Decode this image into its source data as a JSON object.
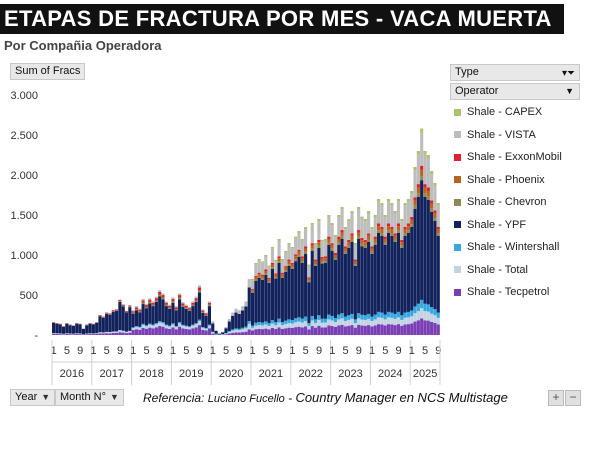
{
  "header": {
    "title": "ETAPAS DE FRACTURA POR MES -  VACA MUERTA",
    "subtitle": "Por Compañia Operadora"
  },
  "buttons": {
    "value_field": "Sum of Fracs",
    "type_field": "Type",
    "operator_field": "Operator",
    "year_field": "Year",
    "month_field": "Month N°",
    "plus": "+",
    "minus": "−"
  },
  "reference": {
    "prefix": "Referencia:  ",
    "name": "Luciano Fucello",
    "separator": " - ",
    "role": "Country Manager en NCS Multistage"
  },
  "colors": {
    "CAPEX": "#a9c46a",
    "VISTA": "#bdbdbd",
    "ExxonMobil": "#e0202a",
    "Phoenix": "#b5651d",
    "Chevron": "#8f8a55",
    "YPF": "#12225c",
    "Wintershall": "#35a9df",
    "Total": "#c3d3e3",
    "Tecpetrol": "#7a3fb5"
  },
  "chart_data": {
    "type": "bar",
    "stacked": true,
    "ylabel": "",
    "xlabel": "",
    "ylim": [
      0,
      3000
    ],
    "yticks": [
      "-",
      "500",
      "1.000",
      "1.500",
      "2.000",
      "2.500",
      "3.000"
    ],
    "ytick_values": [
      0,
      500,
      1000,
      1500,
      2000,
      2500,
      3000
    ],
    "years": [
      "2016",
      "2017",
      "2018",
      "2019",
      "2020",
      "2021",
      "2022",
      "2023",
      "2024",
      "2025"
    ],
    "month_ticks": [
      "1",
      "5",
      "9"
    ],
    "months_in_last_year": 9,
    "legend": [
      {
        "name": "Shale - CAPEX",
        "key": "CAPEX"
      },
      {
        "name": "Shale - VISTA",
        "key": "VISTA"
      },
      {
        "name": "Shale - ExxonMobil",
        "key": "ExxonMobil"
      },
      {
        "name": "Shale - Phoenix",
        "key": "Phoenix"
      },
      {
        "name": "Shale - Chevron",
        "key": "Chevron"
      },
      {
        "name": "Shale - YPF",
        "key": "YPF"
      },
      {
        "name": "Shale - Wintershall",
        "key": "Wintershall"
      },
      {
        "name": "Shale - Total",
        "key": "Total"
      },
      {
        "name": "Shale - Tecpetrol",
        "key": "Tecpetrol"
      }
    ],
    "stack_order": [
      "Tecpetrol",
      "Total",
      "Wintershall",
      "YPF",
      "Chevron",
      "Phoenix",
      "ExxonMobil",
      "VISTA",
      "CAPEX"
    ],
    "totals": [
      160,
      150,
      140,
      110,
      150,
      130,
      120,
      150,
      140,
      80,
      130,
      150,
      140,
      160,
      250,
      230,
      280,
      270,
      310,
      320,
      440,
      380,
      300,
      370,
      310,
      360,
      330,
      450,
      390,
      460,
      420,
      480,
      560,
      520,
      420,
      380,
      470,
      360,
      520,
      410,
      380,
      350,
      420,
      480,
      620,
      320,
      280,
      420,
      170,
      60,
      20,
      40,
      100,
      200,
      280,
      330,
      310,
      360,
      420,
      700,
      700,
      900,
      950,
      920,
      1000,
      870,
      1100,
      940,
      1200,
      950,
      1050,
      1150,
      1100,
      1230,
      1300,
      1200,
      1350,
      880,
      1400,
      1150,
      1450,
      1190,
      1200,
      1500,
      1400,
      1250,
      1500,
      1600,
      1350,
      1450,
      1550,
      1150,
      1600,
      1480,
      1450,
      1550,
      1350,
      1500,
      1700,
      1650,
      1500,
      1700,
      1650,
      1550,
      1700,
      1450,
      1650,
      1700,
      1800,
      2100,
      2300,
      2580,
      2300,
      2250,
      2050,
      1900,
      1650
    ]
  }
}
